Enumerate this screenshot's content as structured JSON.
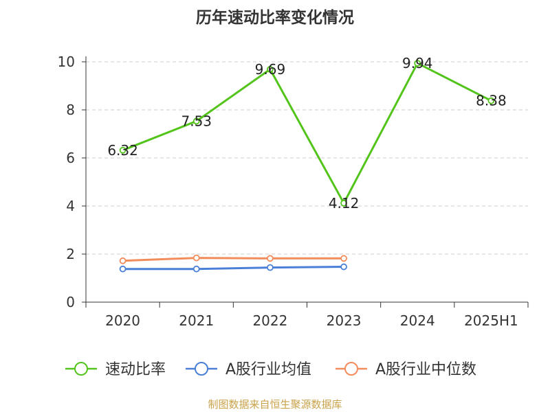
{
  "chart_data": {
    "type": "line",
    "title": "历年速动比率变化情况",
    "categories": [
      "2020",
      "2021",
      "2022",
      "2023",
      "2024",
      "2025H1"
    ],
    "ylim": [
      0,
      10
    ],
    "yticks": [
      "0",
      "2",
      "4",
      "6",
      "8",
      "10"
    ],
    "grid": true,
    "legend_position": "bottom",
    "series": [
      {
        "name": "速动比率",
        "color": "#52c41a",
        "values": [
          6.32,
          7.53,
          9.69,
          4.12,
          9.94,
          8.38
        ],
        "labels": [
          "6.32",
          "7.53",
          "9.69",
          "4.12",
          "9.94",
          "8.38"
        ]
      },
      {
        "name": "A股行业均值",
        "color": "#4a7fd8",
        "values": [
          1.38,
          1.38,
          1.44,
          1.47,
          null,
          null
        ]
      },
      {
        "name": "A股行业中位数",
        "color": "#f28c5b",
        "values": [
          1.72,
          1.84,
          1.82,
          1.82,
          null,
          null
        ]
      }
    ]
  },
  "footer": {
    "source": "制图数据来自恒生聚源数据库"
  }
}
